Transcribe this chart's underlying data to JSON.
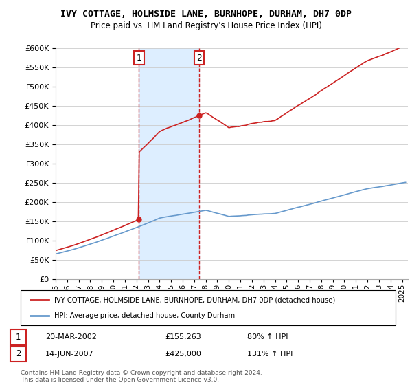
{
  "title": "IVY COTTAGE, HOLMSIDE LANE, BURNHOPE, DURHAM, DH7 0DP",
  "subtitle": "Price paid vs. HM Land Registry's House Price Index (HPI)",
  "legend_line1": "IVY COTTAGE, HOLMSIDE LANE, BURNHOPE, DURHAM, DH7 0DP (detached house)",
  "legend_line2": "HPI: Average price, detached house, County Durham",
  "sale1_label": "1",
  "sale1_date": "20-MAR-2002",
  "sale1_price": "£155,263",
  "sale1_hpi": "80% ↑ HPI",
  "sale2_label": "2",
  "sale2_date": "14-JUN-2007",
  "sale2_price": "£425,000",
  "sale2_hpi": "131% ↑ HPI",
  "footer": "Contains HM Land Registry data © Crown copyright and database right 2024.\nThis data is licensed under the Open Government Licence v3.0.",
  "hpi_color": "#6699cc",
  "price_color": "#cc2222",
  "sale_vline_color": "#cc2222",
  "highlight_color": "#ddeeff",
  "ylim": [
    0,
    600000
  ],
  "yticks": [
    0,
    50000,
    100000,
    150000,
    200000,
    250000,
    300000,
    350000,
    400000,
    450000,
    500000,
    550000,
    600000
  ],
  "xlim_start": 1995.0,
  "xlim_end": 2025.5,
  "sale1_x": 2002.22,
  "sale2_x": 2007.45,
  "sale1_price_val": 155263,
  "sale2_price_val": 425000
}
